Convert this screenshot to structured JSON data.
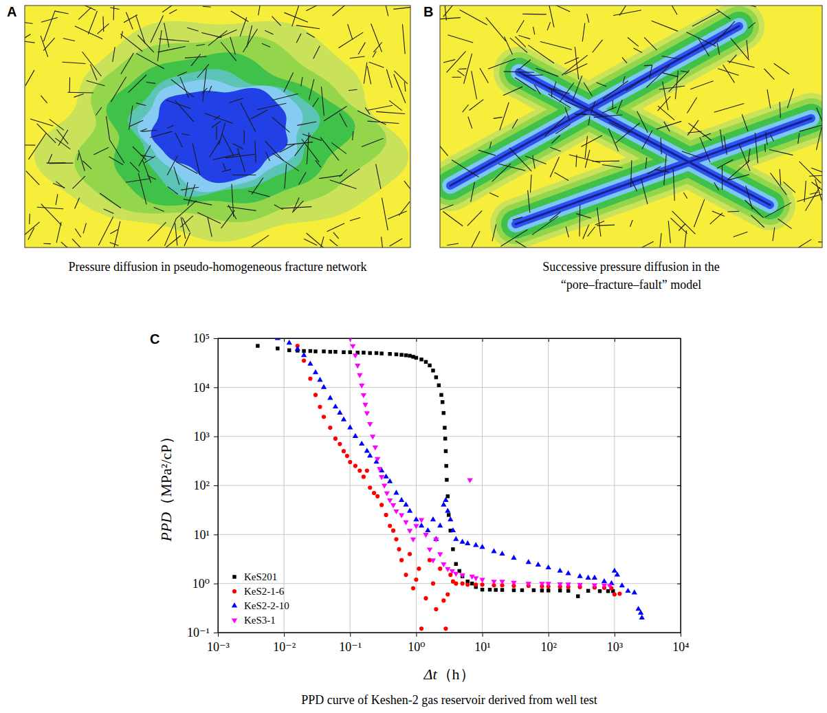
{
  "figure": {
    "panels": [
      {
        "label": "A",
        "caption": "Pressure diffusion in pseudo-homogeneous fracture network"
      },
      {
        "label": "B",
        "caption": "Successive pressure diffusion in the “pore–fracture–fault” model"
      },
      {
        "label": "C"
      }
    ]
  },
  "chart_data": {
    "type": "scatter",
    "title": "PPD curve of Keshen-2 gas reservoir derived from well test",
    "x_label": "Δt（h）",
    "y_label": "PPD（MPa²/cP）",
    "log": true,
    "grid": true,
    "legend": "lower left",
    "xlim": [
      0.001,
      10000
    ],
    "ylim": [
      0.1,
      100000
    ],
    "xticks": [
      {
        "value": 0.001,
        "label": "10⁻³"
      },
      {
        "value": 0.01,
        "label": "10⁻²"
      },
      {
        "value": 0.1,
        "label": "10⁻¹"
      },
      {
        "value": 1,
        "label": "10⁰"
      },
      {
        "value": 10,
        "label": "10¹"
      },
      {
        "value": 100,
        "label": "10²"
      },
      {
        "value": 1000,
        "label": "10³"
      },
      {
        "value": 10000,
        "label": "10⁴"
      }
    ],
    "yticks": [
      {
        "value": 0.1,
        "label": "10⁻¹"
      },
      {
        "value": 1,
        "label": "10⁰"
      },
      {
        "value": 10,
        "label": "10¹"
      },
      {
        "value": 100,
        "label": "10²"
      },
      {
        "value": 1000,
        "label": "10³"
      },
      {
        "value": 10000,
        "label": "10⁴"
      },
      {
        "value": 100000,
        "label": "10⁵"
      }
    ],
    "series": [
      {
        "name": "KeS201",
        "color": "#000000",
        "marker": "square",
        "x": [
          0.004,
          0.008,
          0.012,
          0.016,
          0.02,
          0.025,
          0.03,
          0.04,
          0.05,
          0.06,
          0.08,
          0.1,
          0.13,
          0.16,
          0.2,
          0.25,
          0.3,
          0.4,
          0.5,
          0.6,
          0.7,
          0.8,
          0.9,
          1.0,
          1.2,
          1.4,
          1.6,
          1.8,
          2.0,
          2.2,
          2.4,
          2.5,
          2.6,
          2.7,
          2.75,
          2.8,
          2.85,
          2.9,
          3.0,
          3.1,
          3.3,
          3.6,
          4.0,
          4.5,
          5,
          6,
          7,
          8,
          10,
          13,
          16,
          20,
          30,
          40,
          60,
          80,
          100,
          150,
          200,
          280,
          400,
          600,
          800,
          950
        ],
        "values": [
          70000,
          62000,
          57000,
          56000,
          55000,
          55000,
          54000,
          54000,
          53000,
          53000,
          52000,
          52000,
          51000,
          51000,
          50000,
          50000,
          49000,
          48000,
          47000,
          46000,
          45000,
          44000,
          42000,
          40000,
          37000,
          33000,
          28000,
          22000,
          16000,
          11000,
          7000,
          5000,
          3000,
          1500,
          900,
          500,
          250,
          130,
          60,
          25,
          12,
          5,
          2.5,
          1.8,
          1.4,
          1.1,
          1.0,
          0.85,
          0.75,
          0.75,
          0.74,
          0.74,
          0.73,
          0.73,
          0.73,
          0.72,
          0.72,
          0.72,
          0.71,
          0.55,
          0.71,
          0.7,
          0.7,
          0.7
        ]
      },
      {
        "name": "KeS2-1-6",
        "color": "#ff0000",
        "marker": "circle",
        "x": [
          0.016,
          0.02,
          0.025,
          0.03,
          0.035,
          0.04,
          0.05,
          0.06,
          0.07,
          0.08,
          0.09,
          0.1,
          0.12,
          0.14,
          0.16,
          0.18,
          0.2,
          0.23,
          0.26,
          0.3,
          0.35,
          0.4,
          0.45,
          0.5,
          0.55,
          0.6,
          0.7,
          0.8,
          0.9,
          1.0,
          1.1,
          1.2,
          1.4,
          1.6,
          1.8,
          2.0,
          2.3,
          2.6,
          2.8,
          3.0,
          3.3,
          3.6,
          4.0,
          5,
          6,
          8,
          10,
          15,
          20,
          30,
          50,
          80,
          100,
          150,
          200,
          300,
          500,
          700,
          900,
          1000,
          1200
        ],
        "values": [
          70000,
          35000,
          15000,
          7000,
          4000,
          2500,
          1500,
          900,
          700,
          500,
          400,
          300,
          250,
          200,
          150,
          200,
          90,
          70,
          60,
          40,
          25,
          15,
          12,
          8,
          5,
          3,
          1.5,
          4,
          0.8,
          1.2,
          2,
          0.12,
          0.5,
          3,
          1,
          0.3,
          2,
          0.45,
          0.12,
          0.6,
          1.5,
          1.1,
          1.0,
          1.0,
          0.95,
          0.95,
          0.95,
          0.92,
          0.92,
          0.9,
          0.9,
          0.88,
          0.87,
          0.86,
          0.85,
          0.85,
          0.83,
          0.82,
          0.8,
          0.6,
          0.62
        ]
      },
      {
        "name": "KeS2-2-10",
        "color": "#0000ff",
        "marker": "triangle-up",
        "x": [
          0.008,
          0.012,
          0.016,
          0.02,
          0.025,
          0.03,
          0.035,
          0.04,
          0.05,
          0.06,
          0.07,
          0.08,
          0.1,
          0.12,
          0.15,
          0.18,
          0.2,
          0.25,
          0.3,
          0.35,
          0.4,
          0.5,
          0.6,
          0.7,
          0.8,
          1.0,
          1.2,
          1.5,
          1.8,
          2.0,
          2.3,
          2.6,
          2.8,
          3.0,
          3.3,
          3.6,
          4,
          5,
          6,
          8,
          10,
          15,
          20,
          30,
          50,
          70,
          100,
          150,
          200,
          300,
          400,
          500,
          700,
          900,
          1000,
          1100,
          1300,
          1600,
          2000,
          2300,
          2500,
          2600
        ],
        "values": [
          100000,
          80000,
          60000,
          45000,
          30000,
          20000,
          14000,
          10000,
          6000,
          4000,
          3000,
          2200,
          1500,
          1000,
          700,
          500,
          400,
          300,
          200,
          150,
          120,
          70,
          50,
          40,
          30,
          20,
          15,
          12,
          20,
          8,
          15,
          40,
          50,
          30,
          20,
          12,
          8,
          7,
          6.5,
          6,
          5.5,
          4.5,
          4,
          3.3,
          2.7,
          2.4,
          2.1,
          1.8,
          1.6,
          1.4,
          1.3,
          1.3,
          1.1,
          1.0,
          1.8,
          1.5,
          0.9,
          0.7,
          0.65,
          0.3,
          0.25,
          0.2
        ]
      },
      {
        "name": "KeS3-1",
        "color": "#ff00ff",
        "marker": "triangle-down",
        "x": [
          0.1,
          0.11,
          0.12,
          0.13,
          0.14,
          0.15,
          0.16,
          0.17,
          0.18,
          0.2,
          0.22,
          0.24,
          0.26,
          0.28,
          0.3,
          0.33,
          0.36,
          0.4,
          0.45,
          0.5,
          0.6,
          0.7,
          0.8,
          0.9,
          1.0,
          1.2,
          1.4,
          1.6,
          1.8,
          2.0,
          2.3,
          2.6,
          3.0,
          3.5,
          4,
          5,
          6.5,
          7,
          8,
          10,
          15,
          20,
          30,
          50,
          80,
          100,
          150,
          200,
          300,
          500,
          700,
          850
        ],
        "values": [
          100000,
          70000,
          45000,
          28000,
          18000,
          11000,
          7000,
          4500,
          3000,
          1800,
          1000,
          600,
          350,
          220,
          150,
          100,
          70,
          50,
          40,
          30,
          25,
          18,
          12,
          8,
          15,
          20,
          10,
          5,
          3,
          8,
          4,
          2.5,
          2,
          1.8,
          1.6,
          1.5,
          130,
          1.4,
          1.3,
          1.2,
          1.1,
          1.1,
          1.05,
          1.0,
          1.0,
          1.0,
          0.98,
          0.97,
          0.95,
          0.93,
          0.92,
          0.9
        ]
      }
    ]
  }
}
